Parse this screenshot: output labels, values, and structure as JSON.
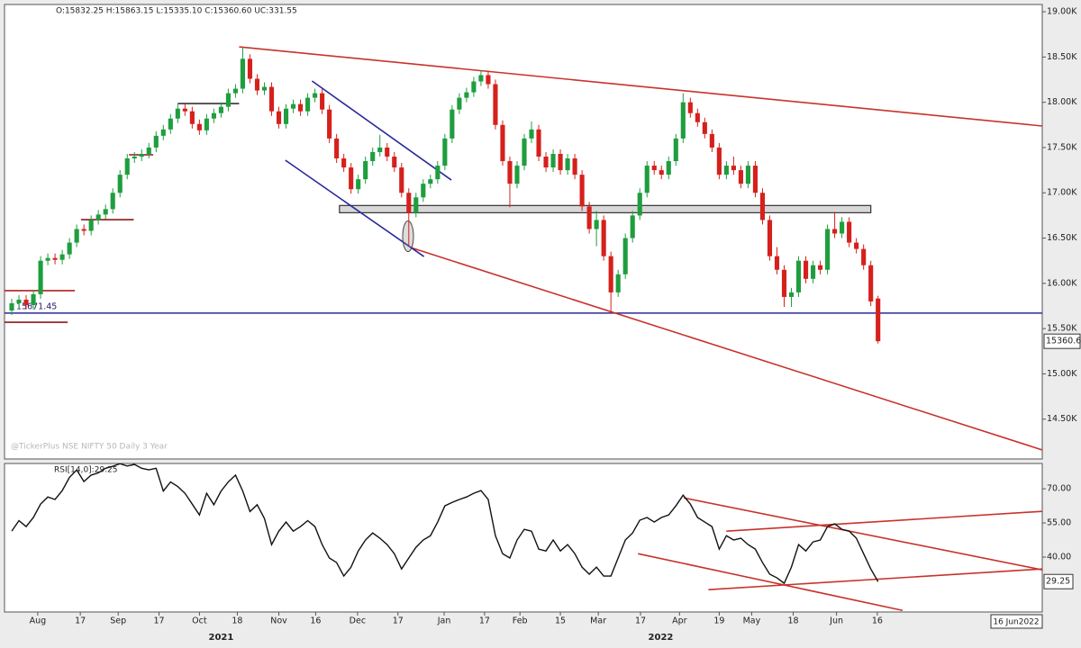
{
  "chart_data": [
    {
      "type": "candlestick",
      "ohlc_text": "O:15832.25 H:15863.15 L:15335.10 C:15360.60 UC:331.55",
      "watermark": "@TickerPlus NSE NIFTY 50 Daily 3 Year",
      "up_color": "#1e9e3e",
      "down_color": "#d6201c",
      "candles": [
        [
          15700,
          15830,
          15650,
          15780
        ],
        [
          15780,
          15870,
          15730,
          15820
        ],
        [
          15820,
          15870,
          15710,
          15760
        ],
        [
          15760,
          15930,
          15710,
          15880
        ],
        [
          15880,
          16300,
          15830,
          16250
        ],
        [
          16250,
          16330,
          16200,
          16280
        ],
        [
          16280,
          16330,
          16210,
          16260
        ],
        [
          16260,
          16370,
          16210,
          16320
        ],
        [
          16320,
          16500,
          16270,
          16450
        ],
        [
          16450,
          16650,
          16400,
          16600
        ],
        [
          16600,
          16650,
          16530,
          16580
        ],
        [
          16580,
          16750,
          16530,
          16700
        ],
        [
          16700,
          16810,
          16650,
          16760
        ],
        [
          16760,
          16870,
          16710,
          16820
        ],
        [
          16820,
          17050,
          16770,
          17000
        ],
        [
          17000,
          17250,
          16950,
          17200
        ],
        [
          17200,
          17430,
          17150,
          17380
        ],
        [
          17380,
          17450,
          17330,
          17400
        ],
        [
          17400,
          17480,
          17350,
          17430
        ],
        [
          17430,
          17550,
          17380,
          17500
        ],
        [
          17500,
          17680,
          17450,
          17630
        ],
        [
          17630,
          17750,
          17580,
          17700
        ],
        [
          17700,
          17870,
          17650,
          17820
        ],
        [
          17820,
          17980,
          17770,
          17930
        ],
        [
          17930,
          17980,
          17850,
          17900
        ],
        [
          17900,
          17950,
          17710,
          17760
        ],
        [
          17760,
          17810,
          17640,
          17690
        ],
        [
          17690,
          17870,
          17640,
          17820
        ],
        [
          17820,
          17930,
          17770,
          17880
        ],
        [
          17880,
          18000,
          17830,
          17950
        ],
        [
          17950,
          18150,
          17900,
          18100
        ],
        [
          18100,
          18200,
          18050,
          18150
        ],
        [
          18150,
          18604,
          18100,
          18480
        ],
        [
          18480,
          18530,
          18210,
          18260
        ],
        [
          18260,
          18310,
          18080,
          18130
        ],
        [
          18130,
          18220,
          18080,
          18170
        ],
        [
          18170,
          18220,
          17850,
          17900
        ],
        [
          17900,
          17950,
          17710,
          17760
        ],
        [
          17760,
          17980,
          17710,
          17930
        ],
        [
          17930,
          18030,
          17880,
          17980
        ],
        [
          17980,
          18030,
          17850,
          17900
        ],
        [
          17900,
          18100,
          17850,
          18050
        ],
        [
          18050,
          18150,
          18000,
          18100
        ],
        [
          18100,
          18150,
          17870,
          17920
        ],
        [
          17920,
          17970,
          17550,
          17600
        ],
        [
          17600,
          17650,
          17330,
          17380
        ],
        [
          17380,
          17430,
          17230,
          17280
        ],
        [
          17280,
          17330,
          16990,
          17040
        ],
        [
          17040,
          17200,
          16990,
          17150
        ],
        [
          17150,
          17400,
          17100,
          17350
        ],
        [
          17350,
          17500,
          17300,
          17450
        ],
        [
          17450,
          17640,
          17400,
          17500
        ],
        [
          17500,
          17550,
          17350,
          17400
        ],
        [
          17400,
          17450,
          17230,
          17280
        ],
        [
          17280,
          17330,
          16950,
          17000
        ],
        [
          17000,
          17050,
          16410,
          16780
        ],
        [
          16780,
          17000,
          16730,
          16950
        ],
        [
          16950,
          17150,
          16900,
          17100
        ],
        [
          17100,
          17200,
          17050,
          17150
        ],
        [
          17150,
          17350,
          17100,
          17300
        ],
        [
          17300,
          17650,
          17250,
          17600
        ],
        [
          17600,
          17970,
          17550,
          17920
        ],
        [
          17920,
          18100,
          17870,
          18050
        ],
        [
          18050,
          18160,
          18000,
          18110
        ],
        [
          18110,
          18280,
          18060,
          18230
        ],
        [
          18230,
          18350,
          18180,
          18300
        ],
        [
          18300,
          18350,
          18150,
          18200
        ],
        [
          18200,
          18250,
          17700,
          17750
        ],
        [
          17750,
          17800,
          17300,
          17350
        ],
        [
          17350,
          17400,
          16840,
          17100
        ],
        [
          17100,
          17350,
          17050,
          17300
        ],
        [
          17300,
          17650,
          17250,
          17600
        ],
        [
          17600,
          17790,
          17550,
          17700
        ],
        [
          17700,
          17750,
          17350,
          17400
        ],
        [
          17400,
          17450,
          17230,
          17280
        ],
        [
          17280,
          17480,
          17230,
          17430
        ],
        [
          17430,
          17480,
          17200,
          17250
        ],
        [
          17250,
          17430,
          17200,
          17380
        ],
        [
          17380,
          17430,
          17150,
          17200
        ],
        [
          17200,
          17250,
          16800,
          16850
        ],
        [
          16850,
          16900,
          16550,
          16600
        ],
        [
          16600,
          16800,
          16410,
          16700
        ],
        [
          16700,
          16750,
          16250,
          16300
        ],
        [
          16300,
          16350,
          15670,
          15900
        ],
        [
          15900,
          16150,
          15850,
          16100
        ],
        [
          16100,
          16550,
          16050,
          16500
        ],
        [
          16500,
          16800,
          16450,
          16750
        ],
        [
          16750,
          17050,
          16700,
          17000
        ],
        [
          17000,
          17350,
          16950,
          17300
        ],
        [
          17300,
          17350,
          17200,
          17250
        ],
        [
          17250,
          17300,
          17150,
          17200
        ],
        [
          17200,
          17400,
          17150,
          17350
        ],
        [
          17350,
          17650,
          17300,
          17600
        ],
        [
          17600,
          18100,
          17550,
          18000
        ],
        [
          18000,
          18050,
          17830,
          17880
        ],
        [
          17880,
          17930,
          17730,
          17780
        ],
        [
          17780,
          17830,
          17600,
          17650
        ],
        [
          17650,
          17700,
          17450,
          17500
        ],
        [
          17500,
          17550,
          17150,
          17200
        ],
        [
          17200,
          17350,
          17150,
          17300
        ],
        [
          17300,
          17400,
          17200,
          17250
        ],
        [
          17250,
          17300,
          17050,
          17100
        ],
        [
          17100,
          17350,
          17050,
          17300
        ],
        [
          17300,
          17350,
          16950,
          17000
        ],
        [
          17000,
          17050,
          16650,
          16700
        ],
        [
          16700,
          16750,
          16250,
          16300
        ],
        [
          16300,
          16400,
          16100,
          16150
        ],
        [
          16150,
          16200,
          15740,
          15850
        ],
        [
          15850,
          15950,
          15740,
          15900
        ],
        [
          15900,
          16300,
          15850,
          16250
        ],
        [
          16250,
          16300,
          16000,
          16050
        ],
        [
          16050,
          16250,
          16000,
          16200
        ],
        [
          16200,
          16250,
          16100,
          16150
        ],
        [
          16150,
          16650,
          16100,
          16600
        ],
        [
          16600,
          16790,
          16500,
          16550
        ],
        [
          16550,
          16730,
          16500,
          16680
        ],
        [
          16680,
          16730,
          16400,
          16450
        ],
        [
          16450,
          16500,
          16330,
          16380
        ],
        [
          16380,
          16430,
          16150,
          16200
        ],
        [
          16200,
          16250,
          15750,
          15800
        ],
        [
          15832.25,
          15863.15,
          15335.1,
          15360.6
        ]
      ],
      "xlim": [
        -1,
        142.75
      ],
      "xticks": [
        {
          "value": 3.6,
          "label": "Aug"
        },
        {
          "value": 9.5,
          "label": "17"
        },
        {
          "value": 14.75,
          "label": "Sep"
        },
        {
          "value": 20.4,
          "label": "17"
        },
        {
          "value": 26,
          "label": "Oct"
        },
        {
          "value": 31.25,
          "label": "18"
        },
        {
          "value": 37,
          "label": "Nov"
        },
        {
          "value": 42.1,
          "label": "16"
        },
        {
          "value": 47.9,
          "label": "Dec"
        },
        {
          "value": 53.5,
          "label": "17"
        },
        {
          "value": 59.9,
          "label": "Jan"
        },
        {
          "value": 65.5,
          "label": "17"
        },
        {
          "value": 70.4,
          "label": "Feb"
        },
        {
          "value": 76,
          "label": "15"
        },
        {
          "value": 81.25,
          "label": "Mar"
        },
        {
          "value": 87.1,
          "label": "17"
        },
        {
          "value": 92.5,
          "label": "Apr"
        },
        {
          "value": 98,
          "label": "19"
        },
        {
          "value": 102.5,
          "label": "May"
        },
        {
          "value": 108.25,
          "label": "18"
        },
        {
          "value": 114.25,
          "label": "Jun"
        },
        {
          "value": 119.9,
          "label": "16"
        }
      ],
      "year_ticks": [
        {
          "value": 29,
          "label": "2021"
        },
        {
          "value": 89.9,
          "label": "2022"
        }
      ],
      "ylim": [
        14060,
        19080
      ],
      "yticks": [
        {
          "value": 19000,
          "label": "19.00K"
        },
        {
          "value": 18500,
          "label": "18.50K"
        },
        {
          "value": 18000,
          "label": "18.00K"
        },
        {
          "value": 17500,
          "label": "17.50K"
        },
        {
          "value": 17000,
          "label": "17.00K"
        },
        {
          "value": 16500,
          "label": "16.50K"
        },
        {
          "value": 16000,
          "label": "16.00K"
        },
        {
          "value": 15500,
          "label": "15.50K"
        },
        {
          "value": 15000,
          "label": "15.00K"
        },
        {
          "value": 14500,
          "label": "14.50K"
        }
      ],
      "last_price": 15360.6,
      "last_date": "16 Jun2022",
      "horizontal_line": {
        "value": 15671.45,
        "color": "#2a2a9a"
      },
      "support_zone": {
        "xlim": [
          45.4,
          119
        ],
        "ylim": [
          16780,
          16860
        ],
        "color": "#d8d8d8"
      },
      "highlight": {
        "x": 54.9,
        "y": 16520
      },
      "trendlines": [
        {
          "color": "#c8322a",
          "points": [
            [
              31.5,
              18612
            ],
            [
              142.75,
              17738
            ]
          ]
        },
        {
          "color": "#c8322a",
          "points": [
            [
              55.25,
              16396
            ],
            [
              142.75,
              14160
            ]
          ]
        },
        {
          "color": "#2a2a9a",
          "points": [
            [
              41.6,
              18235
            ],
            [
              60.9,
              17141
            ]
          ]
        },
        {
          "color": "#2a2a9a",
          "points": [
            [
              37.9,
              17360
            ],
            [
              57.1,
              16296
            ]
          ]
        },
        {
          "color": "#b02020",
          "points": [
            [
              -1,
              15920
            ],
            [
              8.75,
              15920
            ]
          ]
        },
        {
          "color": "#8a1a1a",
          "points": [
            [
              -1,
              15570
            ],
            [
              7.75,
              15570
            ]
          ]
        },
        {
          "color": "#8a1a1a",
          "points": [
            [
              9.6,
              16704
            ],
            [
              16.9,
              16704
            ]
          ]
        },
        {
          "color": "#8a1a1a",
          "points": [
            [
              16.25,
              17420
            ],
            [
              19.6,
              17420
            ]
          ]
        },
        {
          "color": "#333333",
          "points": [
            [
              23,
              17986
            ],
            [
              31.5,
              17986
            ]
          ]
        }
      ]
    },
    {
      "type": "line",
      "title": "RSI[14,0]:29.25",
      "color": "#111111",
      "values": [
        51.4,
        56,
        53.4,
        57.4,
        63.3,
        66.4,
        65.3,
        69.2,
        75,
        78.3,
        73.2,
        76,
        77,
        79,
        79.9,
        81,
        80,
        80.7,
        79,
        78.3,
        79,
        69,
        73,
        71,
        68,
        63.3,
        58.5,
        68,
        63,
        69,
        73,
        76,
        69,
        60,
        63,
        57,
        45.5,
        51.4,
        55.4,
        51.4,
        53.4,
        56,
        53.4,
        45.5,
        39.6,
        37.6,
        31.7,
        35.6,
        42.7,
        47.5,
        50.6,
        48.3,
        45.5,
        41.5,
        34.8,
        39.6,
        44.3,
        47.5,
        49.4,
        55.4,
        62.5,
        64,
        65.3,
        66.4,
        68,
        69.2,
        65.3,
        49.4,
        41.5,
        39.6,
        47.5,
        52.2,
        51.4,
        43.5,
        42.7,
        47.5,
        42.7,
        45.5,
        41.5,
        35.6,
        32.5,
        35.6,
        31.7,
        31.7,
        39.6,
        47.5,
        50.6,
        56.2,
        57.4,
        55.4,
        57.4,
        58.5,
        62.5,
        67.2,
        63.3,
        57.4,
        55.4,
        53.4,
        43.5,
        49.4,
        47.5,
        48.3,
        45.5,
        43.5,
        37.6,
        32.5,
        30.9,
        28.5,
        35.6,
        45.5,
        42.7,
        46.7,
        47.5,
        53.4,
        54.6,
        52.2,
        51.4,
        48.3,
        41.5,
        34.8,
        29.25
      ],
      "xlim": [
        -1,
        142.75
      ],
      "ylim": [
        15.9,
        81.1
      ],
      "yticks": [
        {
          "value": 70,
          "label": "70.00"
        },
        {
          "value": 55,
          "label": "55.00"
        },
        {
          "value": 40,
          "label": "40.00"
        }
      ],
      "last_value": 29.25,
      "trendlines": [
        {
          "color": "#c8322a",
          "points": [
            [
              93.1,
              66
            ],
            [
              142.75,
              34.4
            ]
          ]
        },
        {
          "color": "#c8322a",
          "points": [
            [
              99,
              51.4
            ],
            [
              142.75,
              60.1
            ]
          ]
        },
        {
          "color": "#c8322a",
          "points": [
            [
              96.5,
              25.7
            ],
            [
              142.75,
              34.8
            ]
          ]
        },
        {
          "color": "#c8322a",
          "points": [
            [
              86.75,
              41.5
            ],
            [
              123.4,
              16.6
            ]
          ]
        }
      ]
    }
  ]
}
